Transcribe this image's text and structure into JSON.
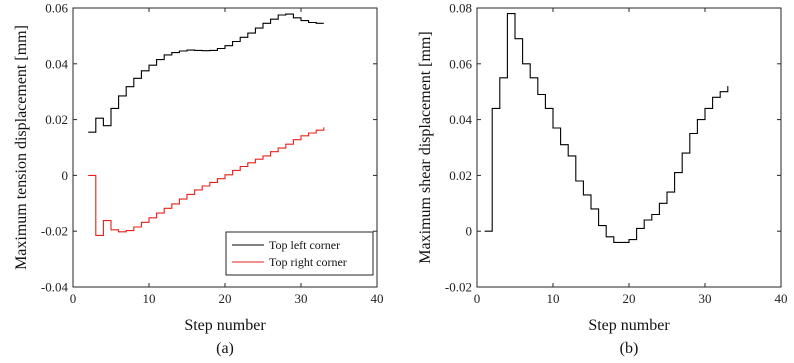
{
  "chart_data": [
    {
      "type": "line",
      "step": true,
      "panel_label": "(a)",
      "xlabel": "Step number",
      "ylabel": "Maximum tension displacement [mm]",
      "xlim": [
        0,
        40
      ],
      "ylim": [
        -0.04,
        0.06
      ],
      "xticks": [
        0,
        10,
        20,
        30,
        40
      ],
      "yticks": [
        -0.04,
        -0.02,
        0,
        0.02,
        0.04,
        0.06
      ],
      "legend_position": "bottom-right",
      "series": [
        {
          "name": "Top left corner",
          "color": "#000000",
          "x": [
            2,
            3,
            4,
            5,
            6,
            7,
            8,
            9,
            10,
            11,
            12,
            13,
            14,
            15,
            16,
            17,
            18,
            19,
            20,
            21,
            22,
            23,
            24,
            25,
            26,
            27,
            28,
            29,
            30,
            31,
            32,
            33
          ],
          "y": [
            0.0155,
            0.0205,
            0.0178,
            0.024,
            0.0285,
            0.0318,
            0.0348,
            0.0375,
            0.0395,
            0.0415,
            0.0432,
            0.044,
            0.0446,
            0.0449,
            0.0448,
            0.0447,
            0.0448,
            0.0455,
            0.0465,
            0.048,
            0.0495,
            0.051,
            0.0528,
            0.0545,
            0.056,
            0.0575,
            0.0578,
            0.0565,
            0.0555,
            0.0548,
            0.0545,
            0.0545
          ]
        },
        {
          "name": "Top right corner",
          "color": "#e8201a",
          "x": [
            0,
            1,
            2,
            3,
            4,
            5,
            6,
            7,
            8,
            9,
            10,
            11,
            12,
            13,
            14,
            15,
            16,
            17,
            18,
            19,
            20,
            21,
            22,
            23,
            24,
            25,
            26,
            27,
            28,
            29,
            30,
            31,
            32,
            33
          ],
          "y": [
            null,
            null,
            0,
            -0.0215,
            -0.0162,
            -0.0195,
            -0.0202,
            -0.0198,
            -0.0185,
            -0.0168,
            -0.0152,
            -0.0135,
            -0.0118,
            -0.0102,
            -0.0085,
            -0.0068,
            -0.0052,
            -0.0038,
            -0.0025,
            -0.0012,
            0.0002,
            0.0018,
            0.0032,
            0.0045,
            0.0058,
            0.007,
            0.0085,
            0.0098,
            0.0112,
            0.0128,
            0.0142,
            0.0152,
            0.0162,
            0.0172
          ]
        }
      ]
    },
    {
      "type": "line",
      "step": true,
      "panel_label": "(b)",
      "xlabel": "Step number",
      "ylabel": "Maximum shear displacement [mm]",
      "xlim": [
        0,
        40
      ],
      "ylim": [
        -0.02,
        0.08
      ],
      "xticks": [
        0,
        10,
        20,
        30,
        40
      ],
      "yticks": [
        -0.02,
        0,
        0.02,
        0.04,
        0.06,
        0.08
      ],
      "series": [
        {
          "name": "",
          "color": "#000000",
          "x": [
            1,
            2,
            3,
            4,
            5,
            6,
            7,
            8,
            9,
            10,
            11,
            12,
            13,
            14,
            15,
            16,
            17,
            18,
            19,
            20,
            21,
            22,
            23,
            24,
            25,
            26,
            27,
            28,
            29,
            30,
            31,
            32,
            33
          ],
          "y": [
            0,
            0.044,
            0.055,
            0.078,
            0.069,
            0.06,
            0.055,
            0.049,
            0.044,
            0.037,
            0.031,
            0.027,
            0.018,
            0.013,
            0.008,
            0.002,
            -0.002,
            -0.004,
            -0.004,
            -0.003,
            0.001,
            0.004,
            0.006,
            0.01,
            0.014,
            0.021,
            0.028,
            0.035,
            0.04,
            0.044,
            0.048,
            0.05,
            0.052
          ]
        }
      ]
    }
  ]
}
